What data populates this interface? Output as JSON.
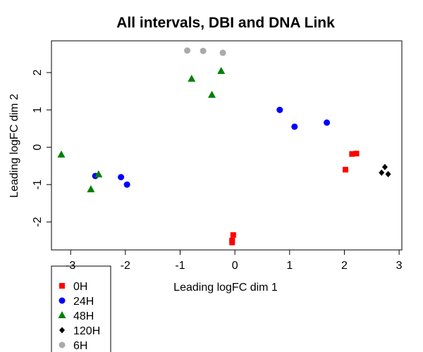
{
  "chart_data": {
    "type": "scatter",
    "title": "All intervals, DBI and DNA Link",
    "xlabel": "Leading logFC dim 1",
    "ylabel": "Leading logFC dim 2",
    "xlim": [
      -3.35,
      3.05
    ],
    "ylim": [
      -2.75,
      2.85
    ],
    "xticks": [
      -3,
      -2,
      -1,
      0,
      1,
      2,
      3
    ],
    "yticks": [
      -2,
      -1,
      0,
      1,
      2
    ],
    "legend_position": "bottom-left",
    "series": [
      {
        "name": "0H",
        "color": "#ff0000",
        "marker": "square",
        "points": [
          [
            -0.03,
            -2.35
          ],
          [
            -0.05,
            -2.5
          ],
          [
            -0.05,
            -2.55
          ],
          [
            2.02,
            -0.6
          ],
          [
            2.14,
            -0.18
          ],
          [
            2.22,
            -0.17
          ]
        ]
      },
      {
        "name": "24H",
        "color": "#0000ff",
        "marker": "circle",
        "points": [
          [
            -2.55,
            -0.77
          ],
          [
            -2.08,
            -0.8
          ],
          [
            -1.97,
            -1.0
          ],
          [
            0.82,
            1.0
          ],
          [
            1.09,
            0.55
          ],
          [
            1.68,
            0.66
          ]
        ]
      },
      {
        "name": "48H",
        "color": "#008000",
        "marker": "triangle",
        "points": [
          [
            -3.17,
            -0.2
          ],
          [
            -2.63,
            -1.13
          ],
          [
            -2.49,
            -0.73
          ],
          [
            -0.79,
            1.83
          ],
          [
            -0.42,
            1.4
          ],
          [
            -0.25,
            2.04
          ]
        ]
      },
      {
        "name": "120H",
        "color": "#000000",
        "marker": "diamond",
        "points": [
          [
            2.68,
            -0.68
          ],
          [
            2.74,
            -0.53
          ],
          [
            2.8,
            -0.72
          ]
        ]
      },
      {
        "name": "6H",
        "color": "#aaaaaa",
        "marker": "circle",
        "points": [
          [
            -0.87,
            2.59
          ],
          [
            -0.58,
            2.58
          ],
          [
            -0.22,
            2.53
          ]
        ]
      }
    ]
  }
}
